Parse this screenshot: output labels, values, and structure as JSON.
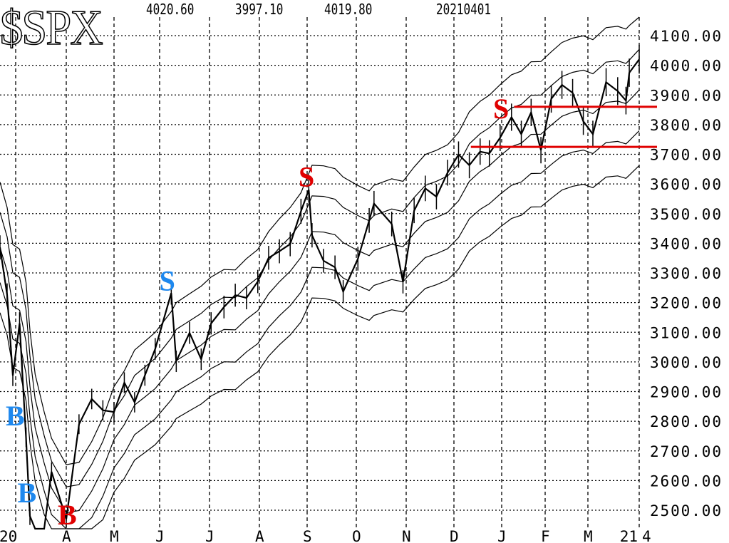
{
  "header": {
    "symbol": "$SPX",
    "open": "4020.60",
    "low": "3997.10",
    "close": "4019.80",
    "date": "20210401"
  },
  "chart_data": {
    "type": "line",
    "title": "$SPX",
    "ylim": [
      2500,
      4100
    ],
    "y_ticks": [
      "4100.00",
      "4000.00",
      "3900.00",
      "3800.00",
      "3700.00",
      "3600.00",
      "3500.00",
      "3400.00",
      "3300.00",
      "3200.00",
      "3100.00",
      "3000.00",
      "2900.00",
      "2800.00",
      "2700.00",
      "2600.00",
      "2500.00"
    ],
    "x_ticks": [
      {
        "label": "20",
        "date": "2020-02-20"
      },
      {
        "label": "",
        "date": "2020-03-01"
      },
      {
        "label": "A",
        "date": "2020-04-01"
      },
      {
        "label": "M",
        "date": "2020-05-01"
      },
      {
        "label": "J",
        "date": "2020-06-01"
      },
      {
        "label": "J",
        "date": "2020-07-01"
      },
      {
        "label": "A",
        "date": "2020-08-01"
      },
      {
        "label": "S",
        "date": "2020-09-01"
      },
      {
        "label": "O",
        "date": "2020-10-01"
      },
      {
        "label": "N",
        "date": "2020-11-01"
      },
      {
        "label": "D",
        "date": "2020-12-01"
      },
      {
        "label": "J",
        "date": "2021-01-01"
      },
      {
        "label": "F",
        "date": "2021-02-01"
      },
      {
        "label": "M",
        "date": "2021-03-01"
      },
      {
        "label": "21",
        "date": "2021-04-01"
      },
      {
        "label": "4",
        "date": "2021-04-02"
      }
    ],
    "grid": true,
    "series": [
      {
        "points": [
          [
            "2020-02-19",
            3386
          ],
          [
            "2020-02-24",
            3226
          ],
          [
            "2020-02-28",
            2954
          ],
          [
            "2020-03-04",
            3130
          ],
          [
            "2020-03-06",
            2972
          ],
          [
            "2020-03-09",
            2746
          ],
          [
            "2020-03-12",
            2480
          ],
          [
            "2020-03-16",
            2386
          ],
          [
            "2020-03-23",
            2237
          ],
          [
            "2020-03-26",
            2630
          ],
          [
            "2020-04-01",
            2470
          ],
          [
            "2020-04-09",
            2790
          ],
          [
            "2020-04-17",
            2875
          ],
          [
            "2020-04-24",
            2837
          ],
          [
            "2020-05-01",
            2831
          ],
          [
            "2020-05-08",
            2930
          ],
          [
            "2020-05-15",
            2864
          ],
          [
            "2020-05-22",
            2955
          ],
          [
            "2020-05-29",
            3044
          ],
          [
            "2020-06-08",
            3232
          ],
          [
            "2020-06-11",
            3002
          ],
          [
            "2020-06-19",
            3098
          ],
          [
            "2020-06-26",
            3009
          ],
          [
            "2020-07-02",
            3130
          ],
          [
            "2020-07-10",
            3185
          ],
          [
            "2020-07-17",
            3225
          ],
          [
            "2020-07-24",
            3216
          ],
          [
            "2020-07-31",
            3271
          ],
          [
            "2020-08-07",
            3351
          ],
          [
            "2020-08-14",
            3373
          ],
          [
            "2020-08-21",
            3397
          ],
          [
            "2020-08-28",
            3508
          ],
          [
            "2020-09-02",
            3580
          ],
          [
            "2020-09-04",
            3427
          ],
          [
            "2020-09-11",
            3341
          ],
          [
            "2020-09-18",
            3319
          ],
          [
            "2020-09-23",
            3237
          ],
          [
            "2020-10-02",
            3348
          ],
          [
            "2020-10-09",
            3477
          ],
          [
            "2020-10-12",
            3534
          ],
          [
            "2020-10-23",
            3465
          ],
          [
            "2020-10-30",
            3270
          ],
          [
            "2020-11-06",
            3510
          ],
          [
            "2020-11-13",
            3585
          ],
          [
            "2020-11-20",
            3557
          ],
          [
            "2020-11-27",
            3638
          ],
          [
            "2020-12-04",
            3699
          ],
          [
            "2020-12-11",
            3663
          ],
          [
            "2020-12-18",
            3709
          ],
          [
            "2020-12-24",
            3703
          ],
          [
            "2020-12-31",
            3756
          ],
          [
            "2021-01-08",
            3825
          ],
          [
            "2021-01-15",
            3768
          ],
          [
            "2021-01-22",
            3841
          ],
          [
            "2021-01-29",
            3714
          ],
          [
            "2021-02-05",
            3887
          ],
          [
            "2021-02-12",
            3934
          ],
          [
            "2021-02-19",
            3907
          ],
          [
            "2021-02-26",
            3811
          ],
          [
            "2021-03-04",
            3768
          ],
          [
            "2021-03-12",
            3943
          ],
          [
            "2021-03-19",
            3913
          ],
          [
            "2021-03-24",
            3881
          ],
          [
            "2021-03-26",
            3975
          ],
          [
            "2021-04-01",
            4020
          ]
        ]
      }
    ],
    "horizontal_lines": [
      {
        "value": 3860,
        "from": "2021-01-10",
        "color": "#e00000"
      },
      {
        "value": 3725,
        "from": "2020-12-12",
        "color": "#e00000"
      }
    ],
    "signals": [
      {
        "label": "B",
        "color": "#1e88ee",
        "date": "2020-02-29",
        "value": 2820
      },
      {
        "label": "B",
        "color": "#1e88ee",
        "date": "2020-03-09",
        "value": 2560
      },
      {
        "label": "B",
        "color": "#e00000",
        "date": "2020-04-01",
        "value": 2460
      },
      {
        "label": "S",
        "color": "#1e88ee",
        "date": "2020-06-06",
        "value": 3275
      },
      {
        "label": "S",
        "color": "#e00000",
        "date": "2020-09-01",
        "value": 3625
      },
      {
        "label": "S",
        "color": "#e00000",
        "date": "2021-01-01",
        "value": 3855
      }
    ],
    "colors": {
      "price": "#000000",
      "bands": "#000000",
      "grid": "#000000"
    }
  }
}
